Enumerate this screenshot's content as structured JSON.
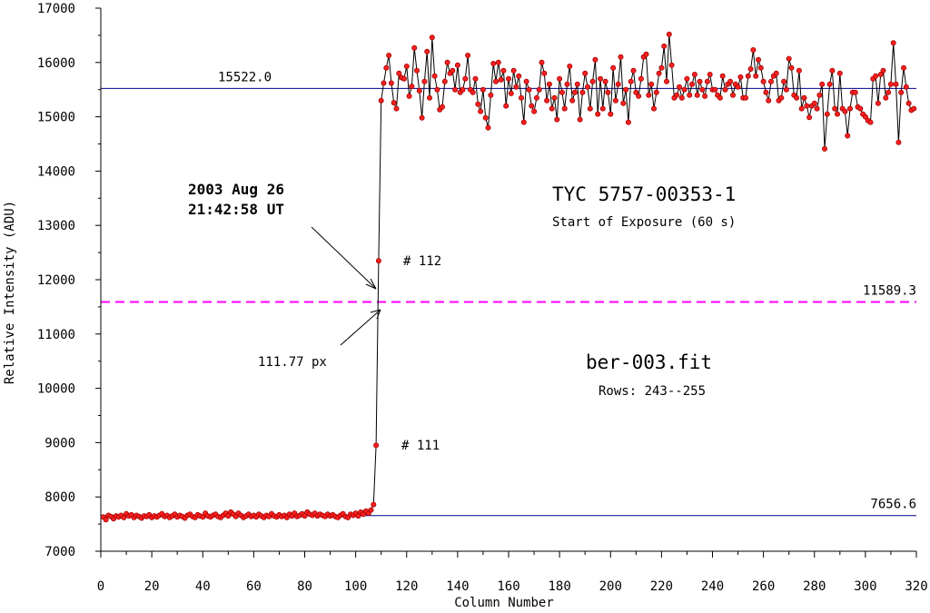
{
  "chart_data": {
    "type": "line",
    "xlabel": "Column Number",
    "ylabel": "Relative Intensity (ADU)",
    "xlim": [
      0,
      320
    ],
    "ylim": [
      7000,
      17000
    ],
    "x_ticks": [
      0,
      20,
      40,
      60,
      80,
      100,
      120,
      140,
      160,
      180,
      200,
      220,
      240,
      260,
      280,
      300,
      320
    ],
    "y_ticks": [
      7000,
      8000,
      9000,
      10000,
      11000,
      12000,
      13000,
      14000,
      15000,
      16000,
      17000
    ],
    "grid": false,
    "colors": {
      "line": "#000000",
      "marker_fill": "#ff2020",
      "marker_edge": "#a00000",
      "ref_line": "#00008b",
      "dash_line": "#ff00ff"
    },
    "reference_lines": [
      {
        "y": 15522.0,
        "label": "15522.0",
        "style": "solid",
        "color": "#00008b"
      },
      {
        "y": 11589.3,
        "label": "11589.3",
        "style": "dashed",
        "color": "#ff00ff"
      },
      {
        "y": 7656.6,
        "label": "7656.6",
        "style": "solid",
        "color": "#00008b"
      }
    ],
    "annotations": {
      "timestamp_line1": "2003 Aug 26",
      "timestamp_line2": "21:42:58 UT",
      "target_name": "TYC 5757-00353-1",
      "target_sub": "Start of Exposure (60 s)",
      "file_name": "ber-003.fit",
      "file_rows": "Rows: 243--255",
      "crossing": "111.77 px",
      "point_112": "# 112",
      "point_111": "# 111"
    },
    "series": [
      {
        "x_start": 1,
        "values": [
          7630,
          7580,
          7660,
          7640,
          7600,
          7650,
          7630,
          7660,
          7620,
          7690,
          7650,
          7670,
          7620,
          7660,
          7640,
          7610,
          7650,
          7640,
          7670,
          7620,
          7650,
          7630,
          7660,
          7690,
          7640,
          7660,
          7620,
          7650,
          7680,
          7630,
          7660,
          7640,
          7610,
          7660,
          7680,
          7640,
          7620,
          7670,
          7650,
          7630,
          7700,
          7650,
          7630,
          7660,
          7680,
          7640,
          7620,
          7660,
          7700,
          7650,
          7720,
          7680,
          7640,
          7700,
          7660,
          7620,
          7650,
          7680,
          7640,
          7660,
          7630,
          7680,
          7650,
          7620,
          7660,
          7640,
          7690,
          7650,
          7630,
          7670,
          7640,
          7660,
          7620,
          7680,
          7650,
          7700,
          7640,
          7660,
          7690,
          7650,
          7720,
          7680,
          7660,
          7700,
          7650,
          7680,
          7660,
          7640,
          7680,
          7650,
          7670,
          7640,
          7620,
          7660,
          7690,
          7640,
          7620,
          7680,
          7660,
          7700,
          7650,
          7720,
          7680,
          7740,
          7700,
          7760,
          7860,
          8950,
          12350,
          15300,
          15620,
          15900,
          16130,
          15620,
          15260,
          15150,
          15800,
          15720,
          15700,
          15930,
          15380,
          15560,
          16270,
          15850,
          15480,
          14980,
          15650,
          16200,
          15350,
          16460,
          15750,
          15500,
          15130,
          15180,
          15650,
          16000,
          15800,
          15850,
          15500,
          15950,
          15450,
          15500,
          15700,
          16130,
          15500,
          15450,
          15700,
          15230,
          15100,
          15500,
          14980,
          14800,
          15400,
          15980,
          15650,
          16000,
          15680,
          15850,
          15200,
          15700,
          15430,
          15850,
          15550,
          15750,
          15350,
          14900,
          15650,
          15500,
          15200,
          15100,
          15350,
          15500,
          16000,
          15800,
          15300,
          15600,
          15150,
          15350,
          14950,
          15700,
          15450,
          15150,
          15600,
          15930,
          15300,
          15450,
          15600,
          14950,
          15450,
          15800,
          15550,
          15150,
          15650,
          16050,
          15050,
          15700,
          15150,
          15650,
          15450,
          15050,
          15900,
          15300,
          15600,
          16100,
          15250,
          15500,
          14900,
          15650,
          15850,
          15450,
          15380,
          15700,
          16100,
          16150,
          15400,
          15600,
          15150,
          15450,
          15800,
          15900,
          16300,
          15650,
          16520,
          15950,
          15350,
          15400,
          15550,
          15350,
          15500,
          15700,
          15400,
          15600,
          15780,
          15400,
          15650,
          15500,
          15380,
          15650,
          15780,
          15500,
          15500,
          15400,
          15350,
          15750,
          15500,
          15600,
          15650,
          15400,
          15600,
          15550,
          15730,
          15350,
          15350,
          15750,
          15880,
          16230,
          15750,
          16050,
          15900,
          15650,
          15450,
          15300,
          15650,
          15750,
          15800,
          15300,
          15350,
          15650,
          15500,
          16070,
          15900,
          15400,
          15350,
          15850,
          15150,
          15350,
          15200,
          14990,
          15200,
          15250,
          15150,
          15400,
          15600,
          14410,
          15050,
          15600,
          15850,
          15150,
          15050,
          15800,
          15150,
          15100,
          14650,
          15150,
          15450,
          15450,
          15180,
          15150,
          15050,
          15000,
          14930,
          14900,
          15700,
          15750,
          15250,
          15780,
          15850,
          15350,
          15450,
          15600,
          16360,
          15600,
          14530,
          15450,
          15900,
          15550,
          15250,
          15120,
          15150
        ]
      }
    ]
  }
}
